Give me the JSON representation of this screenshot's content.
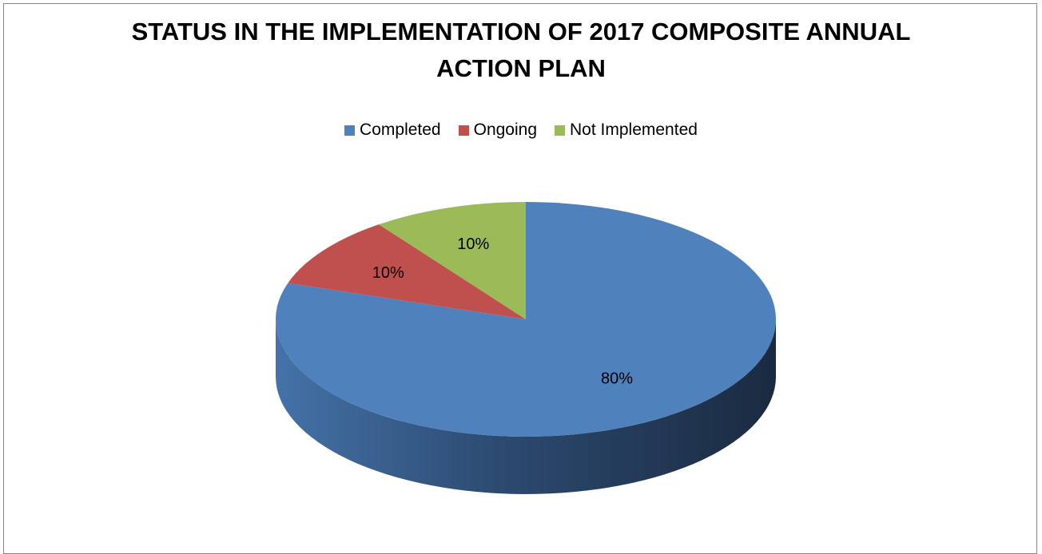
{
  "chart_data": {
    "type": "pie",
    "title_lines": [
      "STATUS IN THE IMPLEMENTATION OF 2017 COMPOSITE ANNUAL",
      "ACTION PLAN"
    ],
    "slices": [
      {
        "label": "Completed",
        "value": 80,
        "data_label": "80%",
        "color": "#4F81BD"
      },
      {
        "label": "Ongoing",
        "value": 10,
        "data_label": "10%",
        "color": "#C0504D"
      },
      {
        "label": "Not Implemented",
        "value": 10,
        "data_label": "10%",
        "color": "#9BBB59"
      }
    ],
    "legend_position": "top",
    "style": "3d-pie"
  }
}
